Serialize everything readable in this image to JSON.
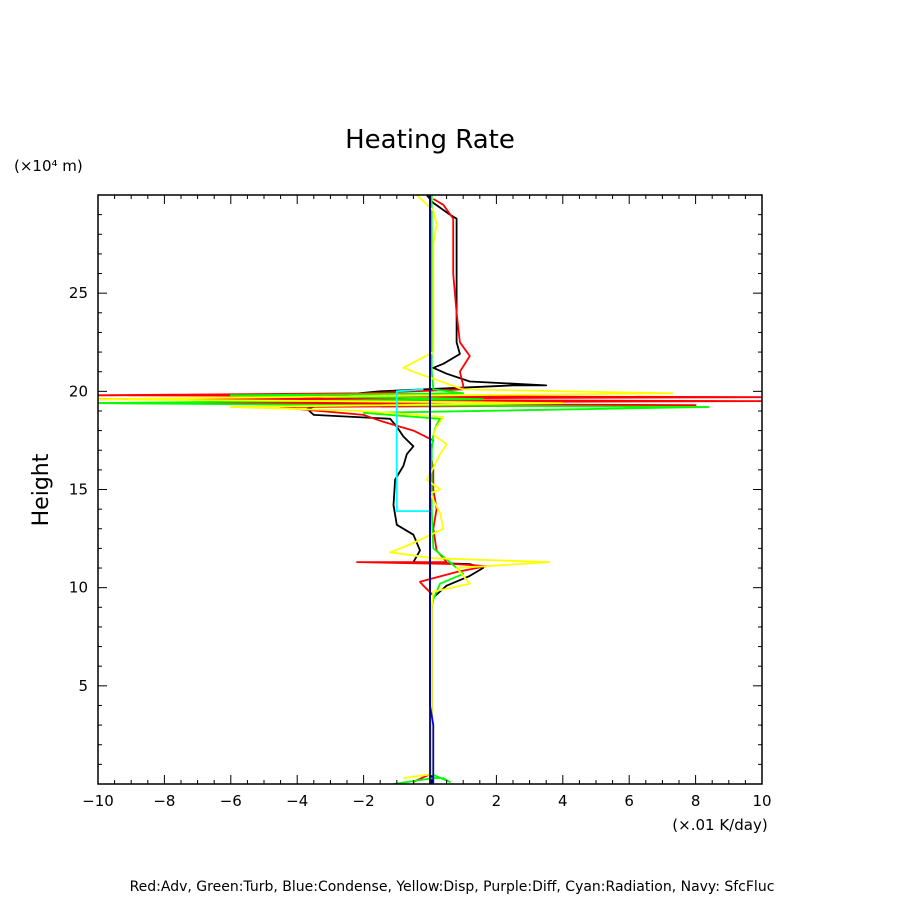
{
  "chart_data": {
    "type": "line",
    "title": "Heating Rate",
    "ylabel": "Height",
    "yunit": "(×10⁴ m)",
    "xunit": "(×.01 K/day)",
    "caption": "Red:Adv, Green:Turb, Blue:Condense, Yellow:Disp, Purple:Diff, Cyan:Radiation, Navy: SfcFluc",
    "xlim": [
      -10,
      10
    ],
    "ylim": [
      0,
      30
    ],
    "xticks": [
      -10,
      -8,
      -6,
      -4,
      -2,
      0,
      2,
      4,
      6,
      8,
      10
    ],
    "yticks": [
      5,
      10,
      15,
      20,
      25
    ],
    "grid": false,
    "series": [
      {
        "color": "#000000",
        "points": [
          [
            0.05,
            0
          ],
          [
            0.05,
            9
          ],
          [
            0.1,
            9.5
          ],
          [
            0.5,
            10.1
          ],
          [
            1.2,
            10.6
          ],
          [
            1.6,
            11
          ],
          [
            1.2,
            11.2
          ],
          [
            -0.5,
            11.3
          ],
          [
            -0.3,
            11.9
          ],
          [
            -0.5,
            12.7
          ],
          [
            -1,
            13.2
          ],
          [
            -1.1,
            14.2
          ],
          [
            -1.05,
            15.5
          ],
          [
            -0.8,
            16.2
          ],
          [
            -0.7,
            16.8
          ],
          [
            -0.5,
            17.2
          ],
          [
            -0.8,
            17.7
          ],
          [
            -1.0,
            18.2
          ],
          [
            -1.2,
            18.6
          ],
          [
            -3.5,
            18.8
          ],
          [
            -3.7,
            19.1
          ],
          [
            -3.2,
            19.4
          ],
          [
            -4.0,
            19.6
          ],
          [
            -1.5,
            20.0
          ],
          [
            2.5,
            20.3
          ],
          [
            3.5,
            20.3
          ],
          [
            1.2,
            20.5
          ],
          [
            0.5,
            20.9
          ],
          [
            0.1,
            21.2
          ],
          [
            0.4,
            21.4
          ],
          [
            0.9,
            21.9
          ],
          [
            0.8,
            22.5
          ],
          [
            0.8,
            24
          ],
          [
            0.8,
            26.5
          ],
          [
            0.8,
            28
          ],
          [
            0.8,
            28.8
          ],
          [
            0.6,
            29
          ],
          [
            0.1,
            29.6
          ],
          [
            -0.1,
            30
          ]
        ]
      },
      {
        "color": "#ff0000",
        "points": [
          [
            -0.5,
            0.1
          ],
          [
            0,
            0.5
          ],
          [
            0.05,
            1
          ],
          [
            0.05,
            9
          ],
          [
            0.1,
            9.6
          ],
          [
            -0.2,
            10.1
          ],
          [
            -0.3,
            10.3
          ],
          [
            0.8,
            10.8
          ],
          [
            1.7,
            11.1
          ],
          [
            0.8,
            11.2
          ],
          [
            -2.2,
            11.3
          ],
          [
            0.5,
            11.3
          ],
          [
            0.2,
            11.9
          ],
          [
            0.1,
            13
          ],
          [
            0.2,
            14
          ],
          [
            0.1,
            15
          ],
          [
            0.1,
            16
          ],
          [
            0,
            17
          ],
          [
            0.1,
            17.5
          ],
          [
            -0.5,
            18
          ],
          [
            -1.5,
            18.5
          ],
          [
            -2.0,
            18.8
          ],
          [
            -4.0,
            19.1
          ],
          [
            -4.5,
            19.2
          ],
          [
            8,
            19.3
          ],
          [
            -10,
            19.4
          ],
          [
            10,
            19.5
          ],
          [
            -10,
            19.6
          ],
          [
            10,
            19.7
          ],
          [
            -10,
            19.8
          ],
          [
            -2,
            19.9
          ],
          [
            1,
            20.1
          ],
          [
            1.0,
            20.3
          ],
          [
            0.9,
            21
          ],
          [
            1.2,
            21.8
          ],
          [
            0.9,
            22.5
          ],
          [
            0.8,
            24
          ],
          [
            0.7,
            26
          ],
          [
            0.7,
            28
          ],
          [
            0.7,
            28.8
          ],
          [
            0.4,
            29.5
          ],
          [
            0.1,
            29.8
          ]
        ]
      },
      {
        "color": "#00ff00",
        "points": [
          [
            -1.1,
            0
          ],
          [
            0.1,
            0.3
          ],
          [
            0.4,
            0.3
          ],
          [
            0.5,
            0.2
          ],
          [
            0.6,
            0.1
          ],
          [
            0.05,
            0.5
          ],
          [
            0.05,
            9
          ],
          [
            0.1,
            9.4
          ],
          [
            0.3,
            10.2
          ],
          [
            1.0,
            10.7
          ],
          [
            0.6,
            11.3
          ],
          [
            0.1,
            12
          ],
          [
            0.05,
            14
          ],
          [
            0.05,
            17
          ],
          [
            0.1,
            17.8
          ],
          [
            0.2,
            18.3
          ],
          [
            0.3,
            18.6
          ],
          [
            -2,
            18.9
          ],
          [
            8.4,
            19.2
          ],
          [
            -2.4,
            19.3
          ],
          [
            -10,
            19.4
          ],
          [
            1.6,
            19.6
          ],
          [
            -6,
            19.8
          ],
          [
            1,
            19.9
          ],
          [
            0.1,
            20.1
          ],
          [
            0.05,
            21
          ],
          [
            0.05,
            30
          ]
        ]
      },
      {
        "color": "#ffff00",
        "points": [
          [
            -0.8,
            0.3
          ],
          [
            0.05,
            0.5
          ],
          [
            0.05,
            9
          ],
          [
            0.1,
            9.8
          ],
          [
            1.2,
            10.2
          ],
          [
            0.8,
            11
          ],
          [
            3.6,
            11.3
          ],
          [
            0.1,
            11.5
          ],
          [
            -1.2,
            11.8
          ],
          [
            -0.6,
            12.2
          ],
          [
            0.4,
            13
          ],
          [
            0.3,
            13.8
          ],
          [
            0,
            14.8
          ],
          [
            0.3,
            15
          ],
          [
            -0.1,
            15.5
          ],
          [
            0.1,
            16.1
          ],
          [
            0.3,
            16.8
          ],
          [
            0.5,
            17.3
          ],
          [
            0.1,
            17.8
          ],
          [
            0.2,
            18.2
          ],
          [
            0.4,
            18.7
          ],
          [
            -2,
            19.0
          ],
          [
            -6,
            19.2
          ],
          [
            4,
            19.4
          ],
          [
            -10,
            19.6
          ],
          [
            0.5,
            19.8
          ],
          [
            7.3,
            19.9
          ],
          [
            1,
            20.1
          ],
          [
            -0.5,
            21
          ],
          [
            -0.8,
            21.2
          ],
          [
            0.1,
            22
          ],
          [
            0.1,
            25
          ],
          [
            0.1,
            27.5
          ],
          [
            0.2,
            28.5
          ],
          [
            0.1,
            29.2
          ],
          [
            -0.4,
            30
          ]
        ]
      },
      {
        "color": "#00ffff",
        "points": [
          [
            0,
            13.9
          ],
          [
            -1.0,
            13.9
          ],
          [
            -1.0,
            20.0
          ],
          [
            -0.2,
            20.1
          ]
        ]
      },
      {
        "color": "#0000ff",
        "points": [
          [
            0.1,
            0
          ],
          [
            0.1,
            3
          ],
          [
            0,
            4
          ],
          [
            0,
            30
          ]
        ]
      },
      {
        "color": "#000080",
        "points": [
          [
            0,
            0
          ],
          [
            0,
            30
          ]
        ]
      }
    ]
  }
}
